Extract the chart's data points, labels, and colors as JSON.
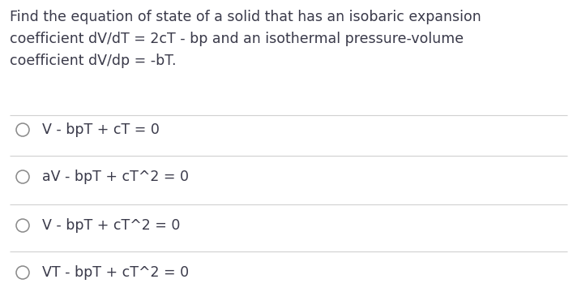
{
  "background_color": "#ffffff",
  "question_text": "Find the equation of state of a solid that has an isobaric expansion\ncoefficient dV/dT = 2cT - bp and an isothermal pressure-volume\ncoefficient dV/dp = -bT.",
  "options": [
    "V - bpT + cT = 0",
    "aV - bpT + cT^2 = 0",
    "V - bpT + cT^2 = 0",
    "VT - bpT + cT^2 = 0"
  ],
  "separator_color": "#d0d0d0",
  "text_color": "#3a3a4a",
  "circle_color": "#888888",
  "question_fontsize": 12.5,
  "option_fontsize": 12.5,
  "fig_width": 7.12,
  "fig_height": 3.76,
  "dpi": 100
}
